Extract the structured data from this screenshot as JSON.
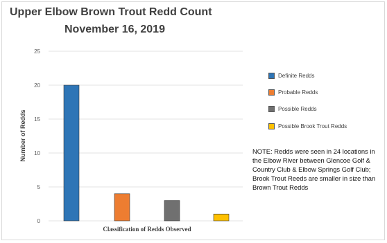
{
  "chart_data": {
    "type": "bar",
    "title": "Upper Elbow Brown Trout Redd Count",
    "subtitle": "November 16, 2019",
    "ylabel": "Number of Redds",
    "xlabel": "Classification of Redds Observed",
    "ylim": [
      0,
      25
    ],
    "yticks": [
      0,
      5,
      10,
      15,
      20,
      25
    ],
    "grid": true,
    "legend_placement": "right",
    "categories": [
      "Definite Redds",
      "Probable Redds",
      "Possible Redds",
      "Possible Brook Trout Redds"
    ],
    "values": [
      20,
      4,
      3,
      1
    ],
    "colors": [
      "#2e75b6",
      "#ed7d31",
      "#707070",
      "#ffc000"
    ],
    "note": "NOTE: Redds were seen in 24 locations in the Elbow River between Glencoe Golf & Country Club & Elbow Springs Golf Club; Brook Trout Reeds are smaller in size than Brown Trout Redds"
  }
}
